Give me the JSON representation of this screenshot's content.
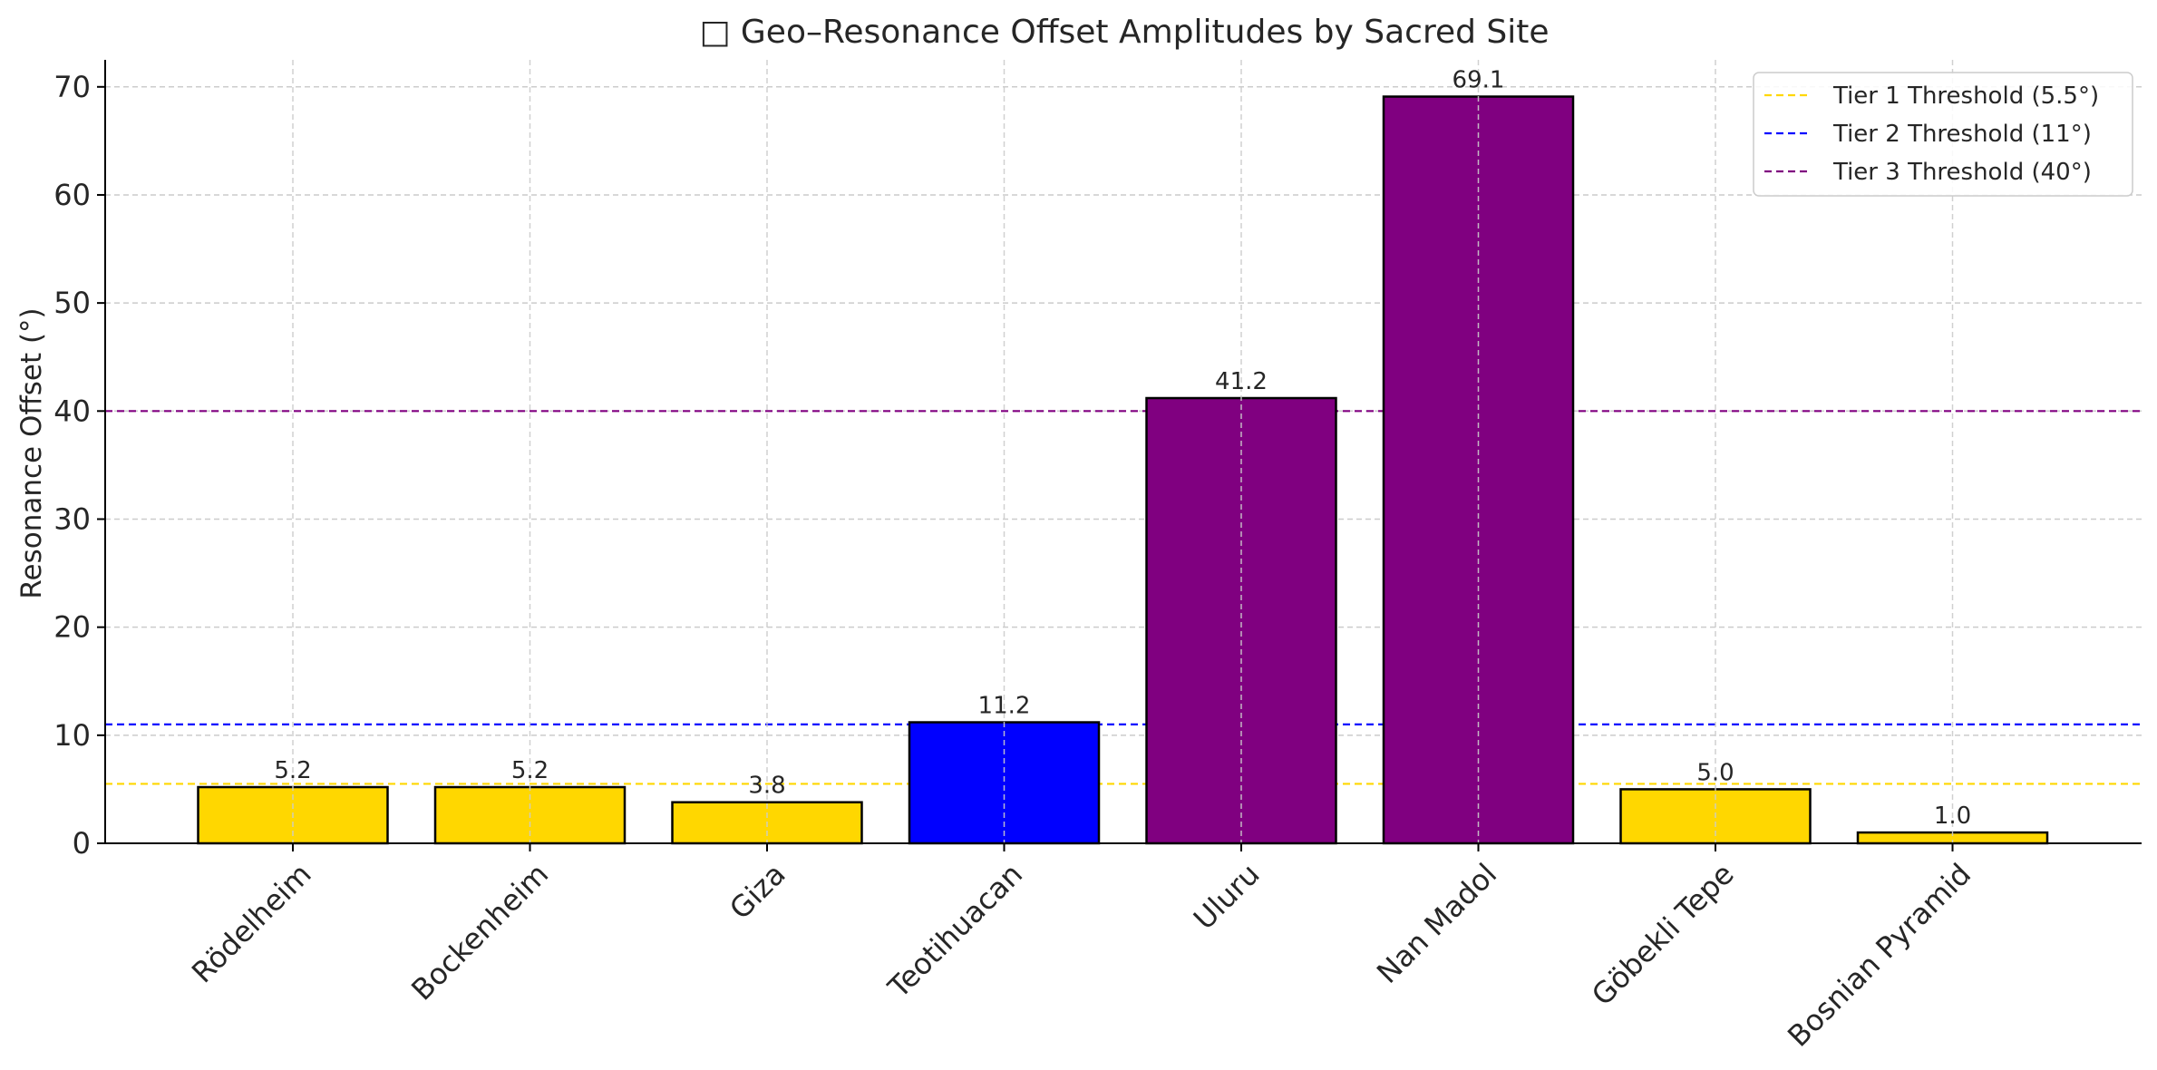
{
  "chart_data": {
    "type": "bar",
    "title": "□ Geo–Resonance Offset Amplitudes by Sacred Site",
    "xlabel": "",
    "ylabel": "Resonance Offset (°)",
    "ylim": [
      0,
      72.5
    ],
    "yticks": [
      0,
      10,
      20,
      30,
      40,
      50,
      60,
      70
    ],
    "grid": true,
    "legend_position": "top-right",
    "categories": [
      "Rödelheim",
      "Bockenheim",
      "Giza",
      "Teotihuacan",
      "Uluru",
      "Nan Madol",
      "Göbekli Tepe",
      "Bosnian Pyramid"
    ],
    "values": [
      5.2,
      5.2,
      3.8,
      11.2,
      41.2,
      69.1,
      5.0,
      1.0
    ],
    "value_labels": [
      "5.2",
      "5.2",
      "3.8",
      "11.2",
      "41.2",
      "69.1",
      "5.0",
      "1.0"
    ],
    "bar_colors": [
      "#FFD700",
      "#FFD700",
      "#FFD700",
      "#0000FF",
      "#800080",
      "#800080",
      "#FFD700",
      "#FFD700"
    ],
    "thresholds": [
      {
        "name": "Tier 1 Threshold (5.5°)",
        "value": 5.5,
        "color": "#FFD700"
      },
      {
        "name": "Tier 2 Threshold (11°)",
        "value": 11,
        "color": "#0000FF"
      },
      {
        "name": "Tier 3 Threshold (40°)",
        "value": 40,
        "color": "#800080"
      }
    ]
  }
}
